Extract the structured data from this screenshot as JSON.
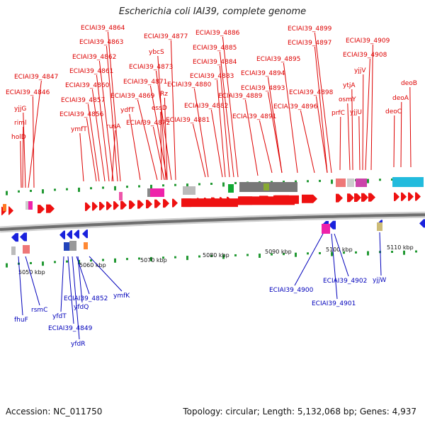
{
  "title": "Escherichia coli IAI39, complete genome",
  "footer": {
    "accession": "Accession: NC_011750",
    "topology": "Topology: circular; Length: 5,132,068 bp; Genes: 4,937"
  },
  "colors": {
    "forward_gene": "#ee1111",
    "reverse_gene": "#1a22dd",
    "forward_label": "#dd0000",
    "reverse_label": "#0000bb",
    "tick": "#229933",
    "backbone": "#999999"
  },
  "scale_labels": [
    "5050 kbp",
    "5060 kbp",
    "5070 kbp",
    "5080 kbp",
    "5090 kbp",
    "5100 kbp",
    "5110 kbp"
  ],
  "forward_genes": [
    "ECIAI39_4847",
    "ECIAI39_4846",
    "yjjG",
    "riml",
    "holD",
    "ECIAI39_4864",
    "ECIAI39_4863",
    "ECIAI39_4862",
    "ECIAI39_4861",
    "ECIAI39_4860",
    "ECIAI39_4857",
    "ECIAI39_4856",
    "ymfT",
    "rusA",
    "ECIAI39_4877",
    "ybcS",
    "ECIAI39_4873",
    "ECIAI39_4871",
    "ECIAI39_4869",
    "Rz",
    "ydfT",
    "essD",
    "ECIAI39_4872",
    "ECIAI39_4886",
    "ECIAI39_4885",
    "ECIAI39_4884",
    "ECIAI39_4883",
    "ECIAI39_4880",
    "ECIAI39_4889",
    "ECIAI39_4882",
    "ECIAI39_4881",
    "ECIAI39_4899",
    "ECIAI39_4897",
    "ECIAI39_4895",
    "ECIAI39_4894",
    "ECIAI39_4893",
    "ECIAI39_4891",
    "ECIAI39_4898",
    "ECIAI39_4896",
    "ECIAI39_4909",
    "ECIAI39_4908",
    "yjjV",
    "ytjA",
    "osmY",
    "prfC",
    "yjjU",
    "deoB",
    "deoA",
    "deoC"
  ],
  "reverse_genes": [
    "fhuF",
    "rsmC",
    "yfdT",
    "ECIAI39_4849",
    "yfdR",
    "ECIAI39_4852",
    "yfdQ",
    "ymfK",
    "ECIAI39_4900",
    "ECIAI39_4902",
    "ECIAI39_4901",
    "yjjW"
  ]
}
